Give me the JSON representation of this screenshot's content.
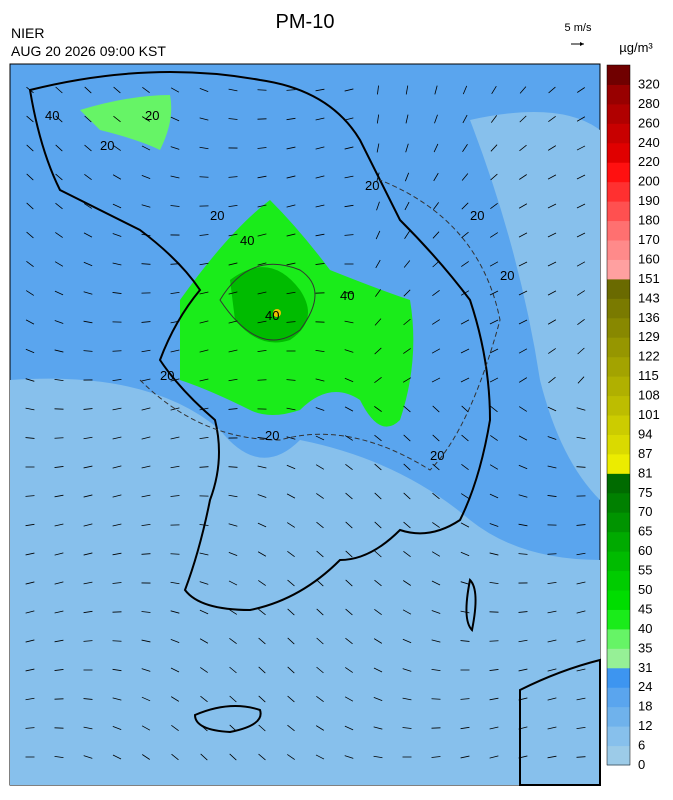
{
  "header": {
    "title": "PM-10",
    "source": "NIER",
    "timestamp": "AUG 20 2026 09:00 KST",
    "wind_scale": "5 m/s"
  },
  "legend": {
    "unit": "µg/m³",
    "levels": [
      {
        "value": 0,
        "color": "#9ccbe8"
      },
      {
        "value": 6,
        "color": "#87c0ec"
      },
      {
        "value": 12,
        "color": "#6fb2ec"
      },
      {
        "value": 18,
        "color": "#5aa5ee"
      },
      {
        "value": 24,
        "color": "#3d95f0"
      },
      {
        "value": 31,
        "color": "#96f096"
      },
      {
        "value": 35,
        "color": "#66f466"
      },
      {
        "value": 40,
        "color": "#1aec1a"
      },
      {
        "value": 45,
        "color": "#00dd00"
      },
      {
        "value": 50,
        "color": "#00cc00"
      },
      {
        "value": 55,
        "color": "#00bb00"
      },
      {
        "value": 60,
        "color": "#00aa00"
      },
      {
        "value": 65,
        "color": "#009400"
      },
      {
        "value": 70,
        "color": "#008000"
      },
      {
        "value": 75,
        "color": "#006b00"
      },
      {
        "value": 81,
        "color": "#ecec00"
      },
      {
        "value": 87,
        "color": "#dada00"
      },
      {
        "value": 94,
        "color": "#cccc00"
      },
      {
        "value": 101,
        "color": "#bdbd00"
      },
      {
        "value": 108,
        "color": "#b0b000"
      },
      {
        "value": 115,
        "color": "#a3a300"
      },
      {
        "value": 122,
        "color": "#969600"
      },
      {
        "value": 129,
        "color": "#888800"
      },
      {
        "value": 136,
        "color": "#7a7a00"
      },
      {
        "value": 143,
        "color": "#6a6a00"
      },
      {
        "value": 151,
        "color": "#ffa0a0"
      },
      {
        "value": 160,
        "color": "#ff8a8a"
      },
      {
        "value": 170,
        "color": "#ff7070"
      },
      {
        "value": 180,
        "color": "#ff5050"
      },
      {
        "value": 190,
        "color": "#ff3030"
      },
      {
        "value": 200,
        "color": "#ff1010"
      },
      {
        "value": 220,
        "color": "#e00000"
      },
      {
        "value": 240,
        "color": "#c80000"
      },
      {
        "value": 260,
        "color": "#b00000"
      },
      {
        "value": 280,
        "color": "#980000"
      },
      {
        "value": 320,
        "color": "#700000"
      }
    ]
  },
  "contour_labels": [
    "40",
    "20",
    "40",
    "40",
    "40",
    "20",
    "20",
    "20",
    "20",
    "20",
    "20",
    "20",
    "20"
  ]
}
